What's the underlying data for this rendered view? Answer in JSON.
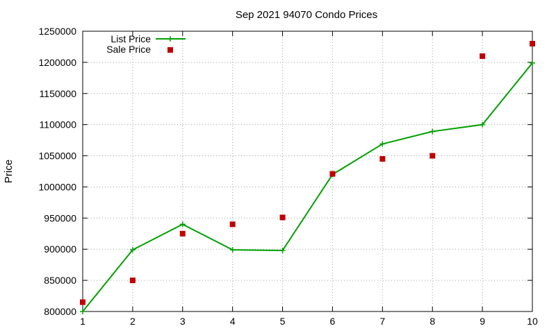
{
  "chart_data": {
    "type": "line",
    "title": "Sep 2021 94070 Condo Prices",
    "xlabel": "",
    "ylabel": "Price",
    "x": [
      1,
      2,
      3,
      4,
      5,
      6,
      7,
      8,
      9,
      10
    ],
    "xlim": [
      1,
      10
    ],
    "ylim": [
      800000,
      1250000
    ],
    "xticks": [
      "1",
      "2",
      "3",
      "4",
      "5",
      "6",
      "7",
      "8",
      "9",
      "10"
    ],
    "yticks": [
      "800000",
      "850000",
      "900000",
      "950000",
      "1000000",
      "1050000",
      "1100000",
      "1150000",
      "1200000",
      "1250000"
    ],
    "grid": true,
    "legend_position": "top-left",
    "series": [
      {
        "name": "List Price",
        "type": "line",
        "marker": "plus",
        "color": "#00a000",
        "values": [
          800000,
          899000,
          940000,
          899000,
          898000,
          1020000,
          1069000,
          1089000,
          1100000,
          1199000
        ]
      },
      {
        "name": "Sale Price",
        "type": "scatter",
        "marker": "square",
        "color": "#c00000",
        "values": [
          815000,
          850000,
          925000,
          940000,
          951000,
          1021000,
          1045000,
          1050000,
          1210000,
          1230000
        ]
      }
    ]
  }
}
